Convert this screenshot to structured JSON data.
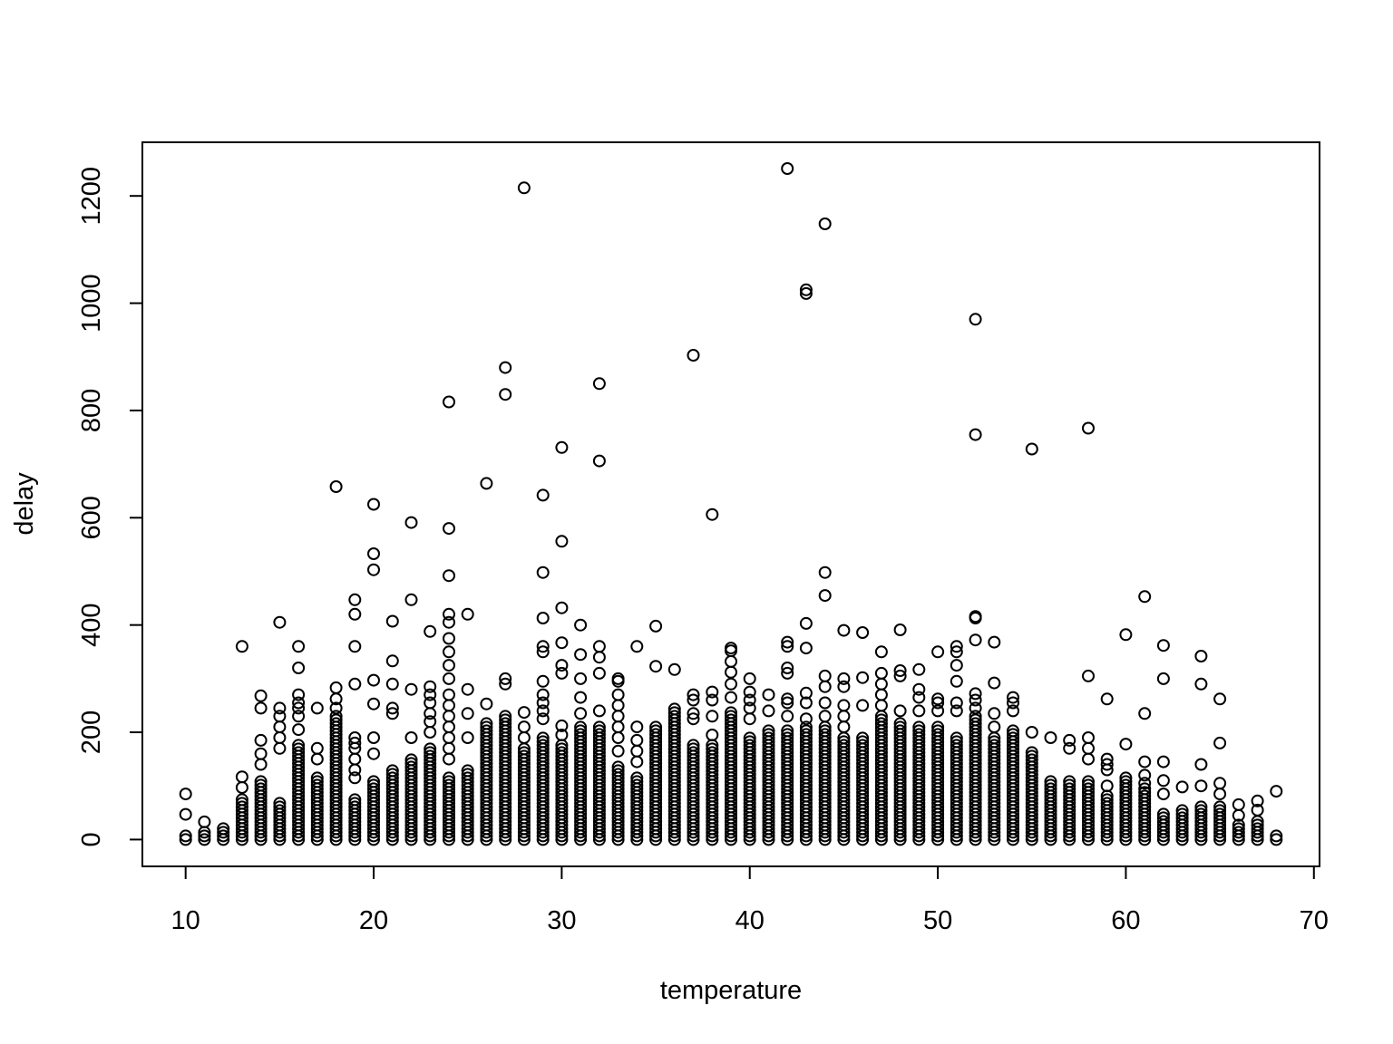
{
  "chart_data": {
    "type": "scatter",
    "title": "",
    "xlabel": "temperature",
    "ylabel": "delay",
    "xlim": [
      7.7,
      70.3
    ],
    "ylim": [
      -50,
      1300
    ],
    "xticks": [
      10,
      20,
      30,
      40,
      50,
      60,
      70
    ],
    "yticks": [
      0,
      200,
      400,
      600,
      800,
      1000,
      1200
    ],
    "grid": false,
    "legend": "none",
    "marker": "open-circle",
    "color": "#000000",
    "columns": [
      {
        "x": 10,
        "max": 12,
        "extra": [
          47,
          85
        ]
      },
      {
        "x": 11,
        "max": 20,
        "extra": [
          33
        ]
      },
      {
        "x": 12,
        "max": 25,
        "extra": []
      },
      {
        "x": 13,
        "max": 80,
        "extra": [
          97,
          117,
          360
        ]
      },
      {
        "x": 14,
        "max": 110,
        "extra": [
          140,
          160,
          185,
          245,
          268
        ]
      },
      {
        "x": 15,
        "max": 70,
        "extra": [
          170,
          190,
          210,
          230,
          245,
          405
        ]
      },
      {
        "x": 16,
        "max": 180,
        "extra": [
          205,
          230,
          245,
          255,
          270,
          320,
          360
        ]
      },
      {
        "x": 17,
        "max": 115,
        "extra": [
          150,
          170,
          245
        ]
      },
      {
        "x": 18,
        "max": 230,
        "extra": [
          245,
          262,
          283,
          658
        ]
      },
      {
        "x": 19,
        "max": 80,
        "extra": [
          115,
          130,
          150,
          170,
          180,
          190,
          290,
          360,
          420,
          447
        ]
      },
      {
        "x": 20,
        "max": 110,
        "extra": [
          160,
          190,
          253,
          297,
          503,
          533,
          625
        ]
      },
      {
        "x": 21,
        "max": 130,
        "extra": [
          235,
          245,
          290,
          333,
          407
        ]
      },
      {
        "x": 22,
        "max": 155,
        "extra": [
          190,
          280,
          447,
          591
        ]
      },
      {
        "x": 23,
        "max": 170,
        "extra": [
          200,
          220,
          235,
          255,
          270,
          285,
          388
        ]
      },
      {
        "x": 24,
        "max": 120,
        "extra": [
          150,
          170,
          190,
          210,
          230,
          250,
          270,
          300,
          325,
          350,
          375,
          405,
          420,
          492,
          580,
          816
        ]
      },
      {
        "x": 25,
        "max": 135,
        "extra": [
          190,
          235,
          280,
          420
        ]
      },
      {
        "x": 26,
        "max": 220,
        "extra": [
          253,
          664
        ]
      },
      {
        "x": 27,
        "max": 235,
        "extra": [
          290,
          300,
          830,
          880
        ]
      },
      {
        "x": 28,
        "max": 170,
        "extra": [
          190,
          210,
          237,
          1215
        ]
      },
      {
        "x": 29,
        "max": 190,
        "extra": [
          225,
          240,
          255,
          270,
          295,
          350,
          360,
          413,
          498,
          642
        ]
      },
      {
        "x": 30,
        "max": 180,
        "extra": [
          195,
          212,
          310,
          325,
          367,
          432,
          556,
          731
        ]
      },
      {
        "x": 31,
        "max": 215,
        "extra": [
          235,
          265,
          300,
          345,
          400
        ]
      },
      {
        "x": 32,
        "max": 210,
        "extra": [
          240,
          310,
          340,
          360,
          706,
          850
        ]
      },
      {
        "x": 33,
        "max": 140,
        "extra": [
          165,
          190,
          210,
          230,
          250,
          270,
          295,
          300
        ]
      },
      {
        "x": 34,
        "max": 120,
        "extra": [
          145,
          165,
          185,
          210,
          360
        ]
      },
      {
        "x": 35,
        "max": 215,
        "extra": [
          323,
          398
        ]
      },
      {
        "x": 36,
        "max": 245,
        "extra": [
          317
        ]
      },
      {
        "x": 37,
        "max": 180,
        "extra": [
          225,
          235,
          260,
          270,
          903
        ]
      },
      {
        "x": 38,
        "max": 180,
        "extra": [
          195,
          230,
          260,
          275,
          606
        ]
      },
      {
        "x": 39,
        "max": 240,
        "extra": [
          265,
          290,
          312,
          332,
          352,
          357
        ]
      },
      {
        "x": 40,
        "max": 195,
        "extra": [
          225,
          245,
          260,
          275,
          300
        ]
      },
      {
        "x": 41,
        "max": 205,
        "extra": [
          240,
          270
        ]
      },
      {
        "x": 42,
        "max": 205,
        "extra": [
          230,
          255,
          262,
          310,
          320,
          360,
          368,
          1251
        ]
      },
      {
        "x": 43,
        "max": 210,
        "extra": [
          225,
          255,
          273,
          357,
          403,
          1018,
          1025
        ]
      },
      {
        "x": 44,
        "max": 210,
        "extra": [
          230,
          255,
          285,
          305,
          455,
          498,
          1148
        ]
      },
      {
        "x": 45,
        "max": 190,
        "extra": [
          210,
          230,
          250,
          285,
          300,
          390
        ]
      },
      {
        "x": 46,
        "max": 195,
        "extra": [
          250,
          302,
          386
        ]
      },
      {
        "x": 47,
        "max": 235,
        "extra": [
          250,
          270,
          290,
          310,
          350
        ]
      },
      {
        "x": 48,
        "max": 220,
        "extra": [
          240,
          305,
          315,
          391
        ]
      },
      {
        "x": 49,
        "max": 210,
        "extra": [
          240,
          265,
          280,
          317
        ]
      },
      {
        "x": 50,
        "max": 210,
        "extra": [
          240,
          255,
          262,
          350
        ]
      },
      {
        "x": 51,
        "max": 195,
        "extra": [
          240,
          255,
          295,
          325,
          350,
          360
        ]
      },
      {
        "x": 52,
        "max": 230,
        "extra": [
          245,
          260,
          272,
          372,
          413,
          416,
          755,
          970
        ]
      },
      {
        "x": 53,
        "max": 195,
        "extra": [
          210,
          235,
          292,
          368
        ]
      },
      {
        "x": 54,
        "max": 205,
        "extra": [
          240,
          255,
          265
        ]
      },
      {
        "x": 55,
        "max": 165,
        "extra": [
          200,
          728
        ]
      },
      {
        "x": 56,
        "max": 110,
        "extra": [
          190
        ]
      },
      {
        "x": 57,
        "max": 110,
        "extra": [
          170,
          185
        ]
      },
      {
        "x": 58,
        "max": 110,
        "extra": [
          150,
          170,
          190,
          305,
          767
        ]
      },
      {
        "x": 59,
        "max": 85,
        "extra": [
          100,
          130,
          140,
          150,
          262
        ]
      },
      {
        "x": 60,
        "max": 120,
        "extra": [
          178,
          382
        ]
      },
      {
        "x": 61,
        "max": 95,
        "extra": [
          105,
          120,
          145,
          235,
          453
        ]
      },
      {
        "x": 62,
        "max": 50,
        "extra": [
          85,
          110,
          145,
          300,
          362
        ]
      },
      {
        "x": 63,
        "max": 60,
        "extra": [
          98
        ]
      },
      {
        "x": 64,
        "max": 65,
        "extra": [
          100,
          140,
          290,
          342
        ]
      },
      {
        "x": 65,
        "max": 65,
        "extra": [
          85,
          105,
          180,
          262
        ]
      },
      {
        "x": 66,
        "max": 30,
        "extra": [
          45,
          65
        ]
      },
      {
        "x": 67,
        "max": 40,
        "extra": [
          55,
          72
        ]
      },
      {
        "x": 68,
        "max": 12,
        "extra": [
          90
        ]
      }
    ]
  }
}
